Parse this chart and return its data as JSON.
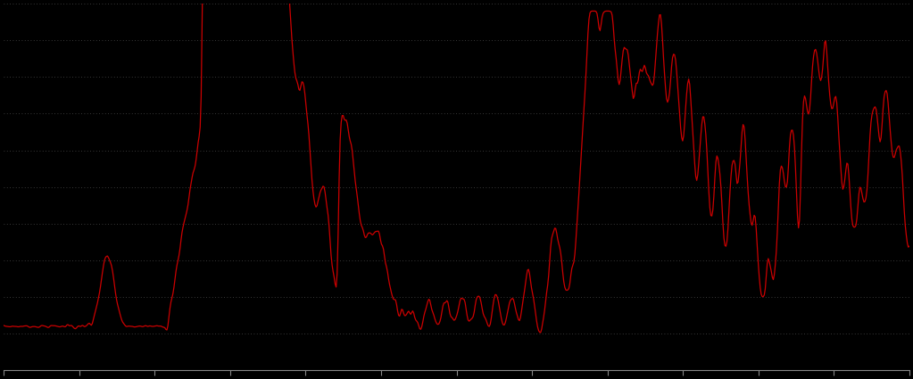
{
  "background_color": "#000000",
  "line_color": "#cc0000",
  "grid_color": "#555555",
  "axis_color": "#888888",
  "fig_width": 10.23,
  "fig_height": 4.25,
  "dpi": 100,
  "ylim_min": 0,
  "ylim_max": 100,
  "n_points": 900,
  "seed": 7
}
